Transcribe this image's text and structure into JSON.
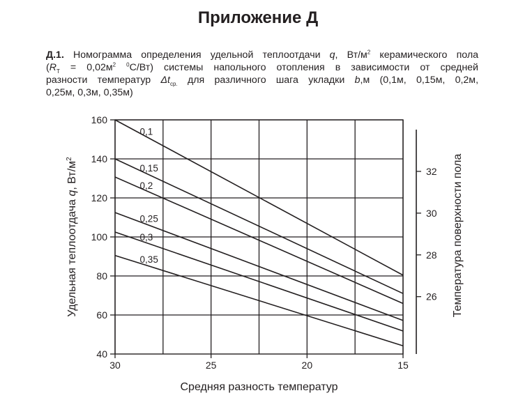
{
  "page_title": "Приложение Д",
  "caption": {
    "number": "Д.1.",
    "l1_a": "Номограмма определения удельной теплоотдачи",
    "l1_q": "q",
    "l1_b": ", Вт/м",
    "l1_sup": "2",
    "l1_c": " керамического пола",
    "l2_open": "(",
    "l2_R": "R",
    "l2_sub": "T",
    "l2_a": " = 0,02м",
    "l2_sup": "2",
    "l2_b": " ",
    "l2_sup2": "0",
    "l2_c": "С/Вт) системы напольного отопления в зависимости от средней",
    "l3_a": "разности температур",
    "l3_dt": "Δt",
    "l3_sub": "ср.",
    "l3_b": " для различного шага укладки",
    "l3_bv": "b",
    "l3_c": ",м (0,1м, 0,15м, 0,2м,",
    "l4": "0,25м, 0,3м, 0,35м)"
  },
  "chart_data": {
    "type": "line",
    "title": "",
    "xlabel": "Средняя разность температур",
    "ylabel_prefix": "Удельная теплоотдача ",
    "ylabel_var": "q",
    "ylabel_unit": ", Вт/м",
    "ylabel_sup": "2",
    "right_label": "Температура поверхности пола",
    "xlim": [
      30,
      15
    ],
    "ylim": [
      40,
      160
    ],
    "x_ticks": [
      30,
      25,
      20,
      15
    ],
    "y_ticks": [
      40,
      60,
      80,
      100,
      120,
      140,
      160
    ],
    "x_grid": [
      30,
      27.5,
      25,
      22.5,
      20,
      17.5,
      15
    ],
    "y_grid": [
      60,
      80,
      100,
      120,
      140,
      160
    ],
    "right_axis": {
      "ticks": [
        26,
        28,
        30,
        32
      ],
      "q_equivalents": [
        69.4,
        90.8,
        112.2,
        133.6
      ],
      "range_q": [
        40,
        155
      ]
    },
    "series": [
      {
        "name": "0,1",
        "x": [
          30,
          15
        ],
        "y": [
          160,
          80.4
        ]
      },
      {
        "name": "0,15",
        "x": [
          30,
          15
        ],
        "y": [
          140,
          71
        ]
      },
      {
        "name": "0,2",
        "x": [
          30,
          15
        ],
        "y": [
          130.7,
          65.9
        ]
      },
      {
        "name": "0,25",
        "x": [
          30,
          15
        ],
        "y": [
          112.5,
          57.2
        ]
      },
      {
        "name": "0,3",
        "x": [
          30,
          15
        ],
        "y": [
          102.5,
          51.8
        ]
      },
      {
        "name": "0,35",
        "x": [
          30,
          15
        ],
        "y": [
          90.5,
          44.2
        ]
      }
    ]
  }
}
